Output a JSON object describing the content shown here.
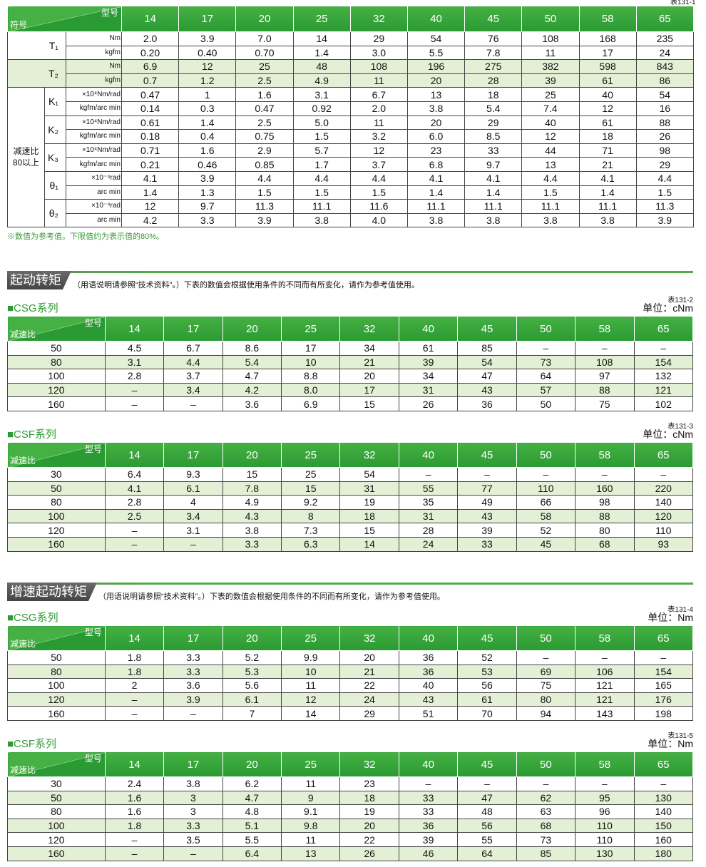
{
  "spec_table": {
    "table_no": "表131-1",
    "corner_top": "型号",
    "corner_bottom": "符号",
    "models": [
      "14",
      "17",
      "20",
      "25",
      "32",
      "40",
      "45",
      "50",
      "58",
      "65"
    ],
    "items": [
      {
        "symbol": "T₁",
        "rows": [
          {
            "unit": "Nm",
            "values": [
              "2.0",
              "3.9",
              "7.0",
              "14",
              "29",
              "54",
              "76",
              "108",
              "168",
              "235"
            ]
          },
          {
            "unit": "kgfm",
            "values": [
              "0.20",
              "0.40",
              "0.70",
              "1.4",
              "3.0",
              "5.5",
              "7.8",
              "11",
              "17",
              "24"
            ]
          }
        ]
      },
      {
        "symbol": "T₂",
        "rows": [
          {
            "unit": "Nm",
            "values": [
              "6.9",
              "12",
              "25",
              "48",
              "108",
              "196",
              "275",
              "382",
              "598",
              "843"
            ]
          },
          {
            "unit": "kgfm",
            "values": [
              "0.7",
              "1.2",
              "2.5",
              "4.9",
              "11",
              "20",
              "28",
              "39",
              "61",
              "86"
            ]
          }
        ]
      }
    ],
    "group": {
      "label": "减速比\n80以上",
      "items": [
        {
          "symbol": "K₁",
          "rows": [
            {
              "unit": "×10⁴Nm/rad",
              "values": [
                "0.47",
                "1",
                "1.6",
                "3.1",
                "6.7",
                "13",
                "18",
                "25",
                "40",
                "54"
              ]
            },
            {
              "unit": "kgfm/arc min",
              "values": [
                "0.14",
                "0.3",
                "0.47",
                "0.92",
                "2.0",
                "3.8",
                "5.4",
                "7.4",
                "12",
                "16"
              ]
            }
          ]
        },
        {
          "symbol": "K₂",
          "rows": [
            {
              "unit": "×10⁴Nm/rad",
              "values": [
                "0.61",
                "1.4",
                "2.5",
                "5.0",
                "11",
                "20",
                "29",
                "40",
                "61",
                "88"
              ]
            },
            {
              "unit": "kgfm/arc min",
              "values": [
                "0.18",
                "0.4",
                "0.75",
                "1.5",
                "3.2",
                "6.0",
                "8.5",
                "12",
                "18",
                "26"
              ]
            }
          ]
        },
        {
          "symbol": "K₃",
          "rows": [
            {
              "unit": "×10⁴Nm/rad",
              "values": [
                "0.71",
                "1.6",
                "2.9",
                "5.7",
                "12",
                "23",
                "33",
                "44",
                "71",
                "98"
              ]
            },
            {
              "unit": "kgfm/arc min",
              "values": [
                "0.21",
                "0.46",
                "0.85",
                "1.7",
                "3.7",
                "6.8",
                "9.7",
                "13",
                "21",
                "29"
              ]
            }
          ]
        },
        {
          "symbol": "θ₁",
          "rows": [
            {
              "unit": "×10⁻⁴rad",
              "values": [
                "4.1",
                "3.9",
                "4.4",
                "4.4",
                "4.4",
                "4.1",
                "4.1",
                "4.4",
                "4.1",
                "4.4"
              ]
            },
            {
              "unit": "arc min",
              "values": [
                "1.4",
                "1.3",
                "1.5",
                "1.5",
                "1.5",
                "1.4",
                "1.4",
                "1.5",
                "1.4",
                "1.5"
              ]
            }
          ]
        },
        {
          "symbol": "θ₂",
          "rows": [
            {
              "unit": "×10⁻⁴rad",
              "values": [
                "12",
                "9.7",
                "11.3",
                "11.1",
                "11.6",
                "11.1",
                "11.1",
                "11.1",
                "11.1",
                "11.3"
              ]
            },
            {
              "unit": "arc min",
              "values": [
                "4.2",
                "3.3",
                "3.9",
                "3.8",
                "4.0",
                "3.8",
                "3.8",
                "3.8",
                "3.8",
                "3.9"
              ]
            }
          ]
        }
      ]
    },
    "note": "※数值为参考值。下限值约为表示值的80%。"
  },
  "sections": [
    {
      "title": "起动转矩",
      "text": "（用语说明请参照“技术资料”。）下表的数值会根据使用条件的不同而有所变化，请作为参考值使用。",
      "tables": [
        {
          "caption": "■CSG系列",
          "table_no": "表131-2",
          "unit": "单位：cNm",
          "corner_top": "型号",
          "corner_bottom": "减速比",
          "models": [
            "14",
            "17",
            "20",
            "25",
            "32",
            "40",
            "45",
            "50",
            "58",
            "65"
          ],
          "rows": [
            {
              "ratio": "50",
              "values": [
                "4.5",
                "6.7",
                "8.6",
                "17",
                "34",
                "61",
                "85",
                "–",
                "–",
                "–"
              ]
            },
            {
              "ratio": "80",
              "values": [
                "3.1",
                "4.4",
                "5.4",
                "10",
                "21",
                "39",
                "54",
                "73",
                "108",
                "154"
              ]
            },
            {
              "ratio": "100",
              "values": [
                "2.8",
                "3.7",
                "4.7",
                "8.8",
                "20",
                "34",
                "47",
                "64",
                "97",
                "132"
              ]
            },
            {
              "ratio": "120",
              "values": [
                "–",
                "3.4",
                "4.2",
                "8.0",
                "17",
                "31",
                "43",
                "57",
                "88",
                "121"
              ]
            },
            {
              "ratio": "160",
              "values": [
                "–",
                "–",
                "3.6",
                "6.9",
                "15",
                "26",
                "36",
                "50",
                "75",
                "102"
              ]
            }
          ]
        },
        {
          "caption": "■CSF系列",
          "table_no": "表131-3",
          "unit": "单位：cNm",
          "corner_top": "型号",
          "corner_bottom": "减速比",
          "models": [
            "14",
            "17",
            "20",
            "25",
            "32",
            "40",
            "45",
            "50",
            "58",
            "65"
          ],
          "rows": [
            {
              "ratio": "30",
              "values": [
                "6.4",
                "9.3",
                "15",
                "25",
                "54",
                "–",
                "–",
                "–",
                "–",
                "–"
              ]
            },
            {
              "ratio": "50",
              "values": [
                "4.1",
                "6.1",
                "7.8",
                "15",
                "31",
                "55",
                "77",
                "110",
                "160",
                "220"
              ]
            },
            {
              "ratio": "80",
              "values": [
                "2.8",
                "4",
                "4.9",
                "9.2",
                "19",
                "35",
                "49",
                "66",
                "98",
                "140"
              ]
            },
            {
              "ratio": "100",
              "values": [
                "2.5",
                "3.4",
                "4.3",
                "8",
                "18",
                "31",
                "43",
                "58",
                "88",
                "120"
              ]
            },
            {
              "ratio": "120",
              "values": [
                "–",
                "3.1",
                "3.8",
                "7.3",
                "15",
                "28",
                "39",
                "52",
                "80",
                "110"
              ]
            },
            {
              "ratio": "160",
              "values": [
                "–",
                "–",
                "3.3",
                "6.3",
                "14",
                "24",
                "33",
                "45",
                "68",
                "93"
              ]
            }
          ]
        }
      ]
    },
    {
      "title": "增速起动转矩",
      "text": "（用语说明请参照“技术资料”。）下表的数值会根据使用条件的不同而有所变化，请作为参考值使用。",
      "tables": [
        {
          "caption": "■CSG系列",
          "table_no": "表131-4",
          "unit": "单位：Nm",
          "corner_top": "型号",
          "corner_bottom": "减速比",
          "models": [
            "14",
            "17",
            "20",
            "25",
            "32",
            "40",
            "45",
            "50",
            "58",
            "65"
          ],
          "rows": [
            {
              "ratio": "50",
              "values": [
                "1.8",
                "3.3",
                "5.2",
                "9.9",
                "20",
                "36",
                "52",
                "–",
                "–",
                "–"
              ]
            },
            {
              "ratio": "80",
              "values": [
                "1.8",
                "3.3",
                "5.3",
                "10",
                "21",
                "36",
                "53",
                "69",
                "106",
                "154"
              ]
            },
            {
              "ratio": "100",
              "values": [
                "2",
                "3.6",
                "5.6",
                "11",
                "22",
                "40",
                "56",
                "75",
                "121",
                "165"
              ]
            },
            {
              "ratio": "120",
              "values": [
                "–",
                "3.9",
                "6.1",
                "12",
                "24",
                "43",
                "61",
                "80",
                "121",
                "176"
              ]
            },
            {
              "ratio": "160",
              "values": [
                "–",
                "–",
                "7",
                "14",
                "29",
                "51",
                "70",
                "94",
                "143",
                "198"
              ]
            }
          ]
        },
        {
          "caption": "■CSF系列",
          "table_no": "表131-5",
          "unit": "单位：Nm",
          "corner_top": "型号",
          "corner_bottom": "减速比",
          "models": [
            "14",
            "17",
            "20",
            "25",
            "32",
            "40",
            "45",
            "50",
            "58",
            "65"
          ],
          "rows": [
            {
              "ratio": "30",
              "values": [
                "2.4",
                "3.8",
                "6.2",
                "11",
                "23",
                "–",
                "–",
                "–",
                "–",
                "–"
              ]
            },
            {
              "ratio": "50",
              "values": [
                "1.6",
                "3",
                "4.7",
                "9",
                "18",
                "33",
                "47",
                "62",
                "95",
                "130"
              ]
            },
            {
              "ratio": "80",
              "values": [
                "1.6",
                "3",
                "4.8",
                "9.1",
                "19",
                "33",
                "48",
                "63",
                "96",
                "140"
              ]
            },
            {
              "ratio": "100",
              "values": [
                "1.8",
                "3.3",
                "5.1",
                "9.8",
                "20",
                "36",
                "56",
                "68",
                "110",
                "150"
              ]
            },
            {
              "ratio": "120",
              "values": [
                "–",
                "3.5",
                "5.5",
                "11",
                "22",
                "39",
                "55",
                "73",
                "110",
                "160"
              ]
            },
            {
              "ratio": "160",
              "values": [
                "–",
                "–",
                "6.4",
                "13",
                "26",
                "46",
                "64",
                "85",
                "130",
                "180"
              ]
            }
          ]
        }
      ]
    }
  ]
}
